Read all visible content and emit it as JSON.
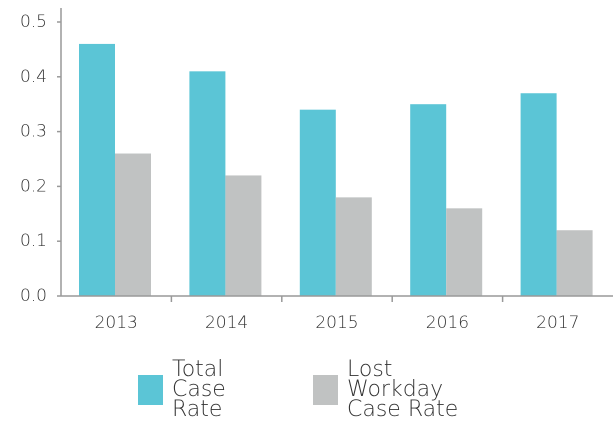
{
  "chart_data": {
    "type": "bar",
    "categories": [
      "2013",
      "2014",
      "2015",
      "2016",
      "2017"
    ],
    "series": [
      {
        "name": "Total Case Rate",
        "color": "#5bc5d6",
        "values": [
          0.46,
          0.41,
          0.34,
          0.35,
          0.37
        ]
      },
      {
        "name": "Lost Workday Case Rate",
        "color": "#c0c2c2",
        "values": [
          0.26,
          0.22,
          0.18,
          0.16,
          0.12
        ]
      }
    ],
    "ylim": [
      0,
      0.5
    ],
    "yticks": [
      {
        "value": 0,
        "label": "0.0"
      },
      0.1,
      0.2,
      0.3,
      0.4,
      0.5
    ],
    "grid": false
  }
}
